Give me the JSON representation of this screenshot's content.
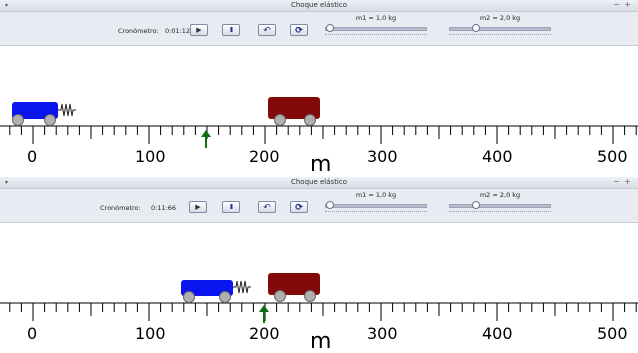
{
  "window": {
    "title": "Choque elástico",
    "menu_glyph": "▾",
    "minimize_glyph": "−",
    "maximize_glyph": "+"
  },
  "toolbar": {
    "chronometer_label": "Cronómetro:",
    "play_glyph": "▶",
    "pause_glyph": "II",
    "reset_glyph": "↶",
    "refresh_glyph": "⟳",
    "mass1_label": "m1 = 1,0 kg",
    "mass2_label": "m2 = 2,0 kg",
    "mass1_value_kg": 1.0,
    "mass2_value_kg": 2.0
  },
  "axis": {
    "unit": "m",
    "labels": [
      "0",
      "100",
      "200",
      "300",
      "400",
      "500"
    ]
  },
  "colors": {
    "car1": "#0a14ee",
    "car2": "#820a0a",
    "arrow": "#0a6e0a"
  },
  "frames": [
    {
      "chronometer_value": "0:01:12"
    },
    {
      "chronometer_value": "0:11:66"
    }
  ]
}
